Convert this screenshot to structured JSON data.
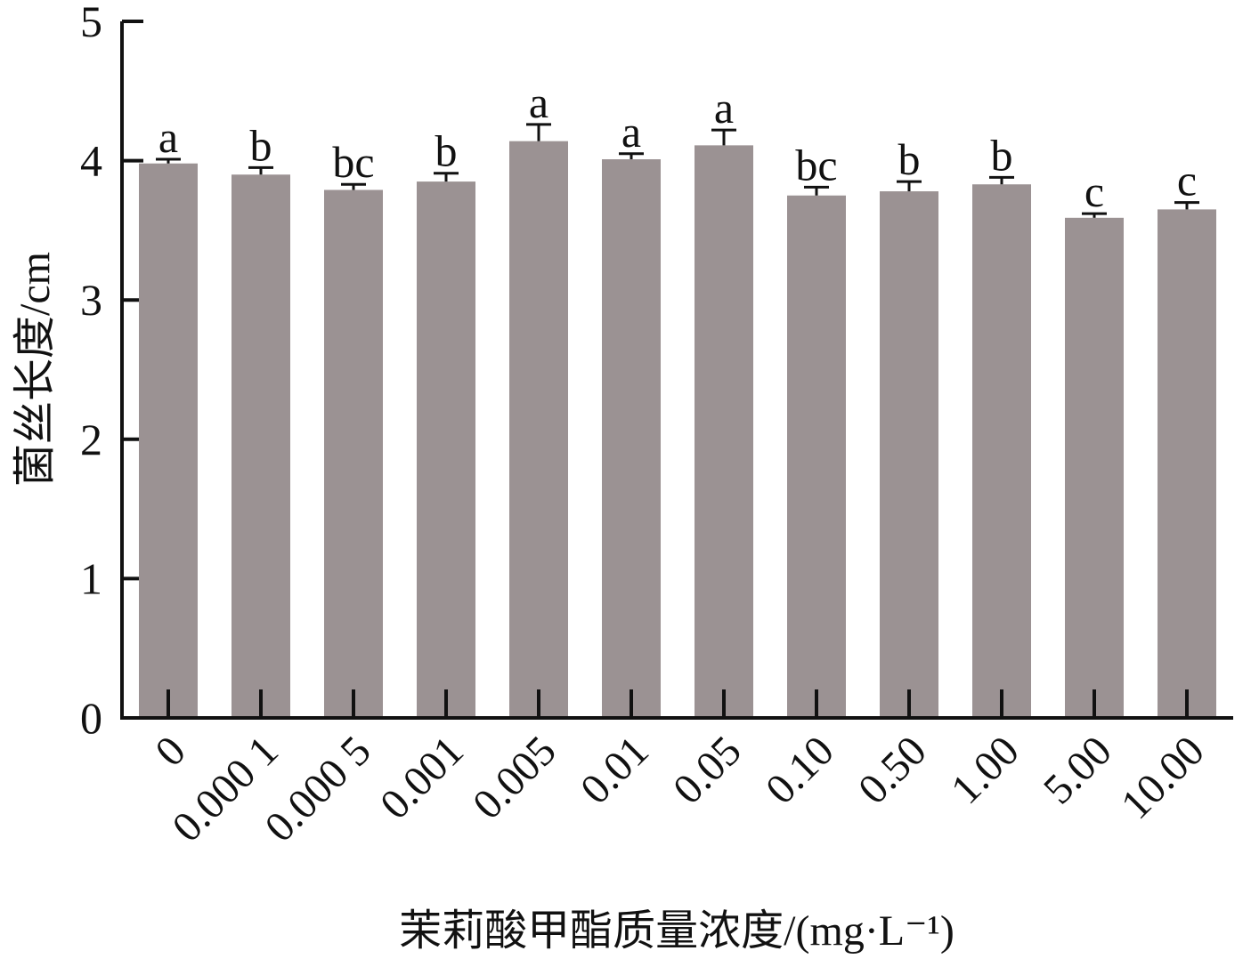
{
  "chart_data": {
    "type": "bar",
    "y_label": "菌丝长度/cm",
    "x_label": "茉莉酸甲酯质量浓度/(mg·L⁻¹)",
    "categories": [
      "0",
      "0.000 1",
      "0.000 5",
      "0.001",
      "0.005",
      "0.01",
      "0.05",
      "0.10",
      "0.50",
      "1.00",
      "5.00",
      "10.00"
    ],
    "values": [
      3.98,
      3.9,
      3.79,
      3.85,
      4.14,
      4.01,
      4.11,
      3.75,
      3.78,
      3.83,
      3.59,
      3.65
    ],
    "errors": [
      0.03,
      0.05,
      0.04,
      0.06,
      0.12,
      0.04,
      0.11,
      0.06,
      0.07,
      0.05,
      0.03,
      0.05
    ],
    "annotations": [
      "a",
      "b",
      "bc",
      "b",
      "a",
      "a",
      "a",
      "bc",
      "b",
      "b",
      "c",
      "c"
    ],
    "color": "#9b9293",
    "ylim": [
      0,
      5
    ],
    "yticks": [
      0,
      1,
      2,
      3,
      4,
      5
    ]
  }
}
